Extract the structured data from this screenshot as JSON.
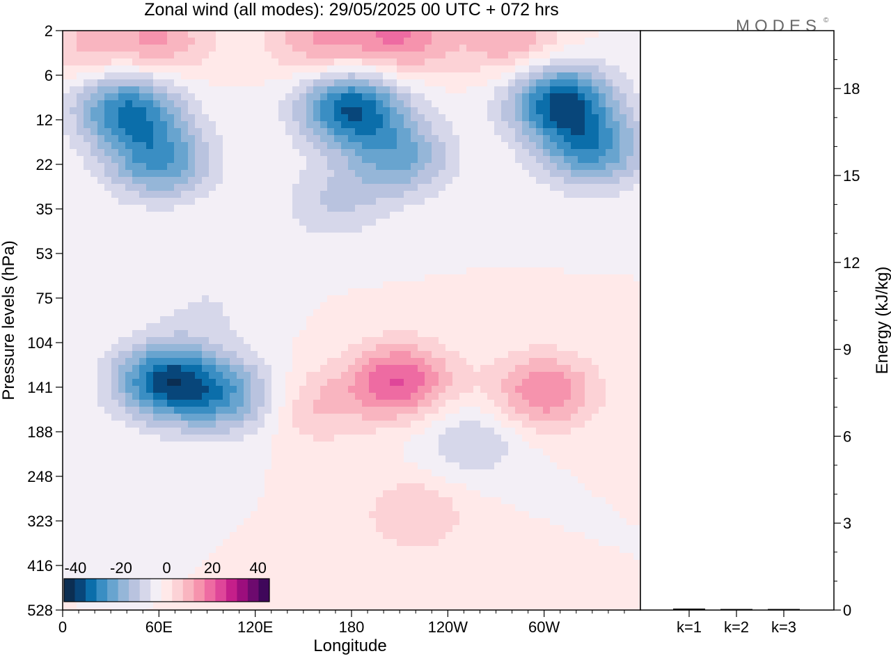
{
  "title": "Zonal wind (all modes):  29/05/2025  00 UTC  + 072 hrs",
  "logo_text": "MODES",
  "logo_mark": "©",
  "chart_data": [
    {
      "type": "heatmap",
      "variable": "Zonal wind",
      "xlabel": "Longitude",
      "ylabel": "Pressure levels (hPa)",
      "x_ticks": [
        "0",
        "60E",
        "120E",
        "180",
        "120W",
        "60W"
      ],
      "x_tick_degrees": [
        0,
        60,
        120,
        180,
        240,
        300
      ],
      "x_range_degrees": [
        0,
        360
      ],
      "y_ticks": [
        "2",
        "6",
        "12",
        "22",
        "35",
        "53",
        "75",
        "104",
        "141",
        "188",
        "248",
        "323",
        "416",
        "528"
      ],
      "colorbar": {
        "ticks": [
          "-40",
          "-20",
          "0",
          "20",
          "40"
        ],
        "tick_values": [
          -40,
          -20,
          0,
          20,
          40
        ],
        "range": [
          -45,
          45
        ],
        "step": 5,
        "colors": [
          "#0b2e52",
          "#08467a",
          "#0b6eaa",
          "#3a8ec3",
          "#68a4cf",
          "#95b6d8",
          "#b9c3df",
          "#d6d7ea",
          "#f3eff6",
          "#ffe9e9",
          "#fcd2d6",
          "#f9b5c0",
          "#f693ad",
          "#ee6ba2",
          "#df4699",
          "#c51f8a",
          "#9c0e7d",
          "#6d0a6e",
          "#3f075a"
        ]
      },
      "features": [
        {
          "lon": 14,
          "level": 3,
          "u": 10
        },
        {
          "lon": 60,
          "level": 2.5,
          "u": 15
        },
        {
          "lon": 160,
          "level": 2.5,
          "u": 15
        },
        {
          "lon": 210,
          "level": 2.3,
          "u": 20
        },
        {
          "lon": 280,
          "level": 2.5,
          "u": 15
        },
        {
          "lon": 40,
          "level": 10,
          "u": -30
        },
        {
          "lon": 180,
          "level": 10,
          "u": -35
        },
        {
          "lon": 310,
          "level": 9,
          "u": -35
        },
        {
          "lon": 60,
          "level": 21,
          "u": -25
        },
        {
          "lon": 210,
          "level": 20,
          "u": -20
        },
        {
          "lon": 330,
          "level": 18,
          "u": -25
        },
        {
          "lon": 170,
          "level": 33,
          "u": -10
        },
        {
          "lon": 65,
          "level": 135,
          "u": -35
        },
        {
          "lon": 103,
          "level": 150,
          "u": -20
        },
        {
          "lon": 210,
          "level": 135,
          "u": 25
        },
        {
          "lon": 157,
          "level": 160,
          "u": 10
        },
        {
          "lon": 300,
          "level": 145,
          "u": 20
        },
        {
          "lon": 255,
          "level": 200,
          "u": -10
        },
        {
          "lon": 90,
          "level": 80,
          "u": -5
        },
        {
          "lon": 220,
          "level": 310,
          "u": 10
        }
      ]
    },
    {
      "type": "bar",
      "ylabel": "Energy (kJ/kg)",
      "categories": [
        "k=1",
        "k=2",
        "k=3"
      ],
      "values": [
        0.05,
        0.03,
        0.03
      ],
      "ylim": [
        0,
        20
      ],
      "y_ticks": [
        "0",
        "3",
        "6",
        "9",
        "12",
        "15",
        "18"
      ],
      "y_tick_values": [
        0,
        3,
        6,
        9,
        12,
        15,
        18
      ]
    }
  ]
}
